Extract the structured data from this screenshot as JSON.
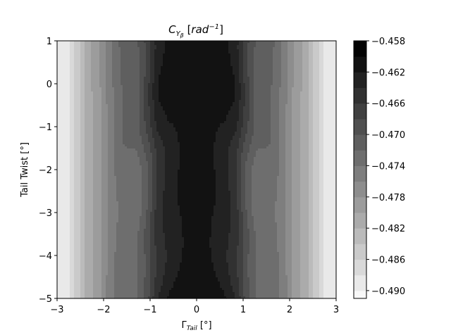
{
  "chart_data": {
    "type": "heatmap",
    "subtype": "filled-contour",
    "title": {
      "main": "C",
      "sub_main": "Y",
      "sub_sub": "β",
      "bracket_open": "[",
      "unit": "rad",
      "sup": "−1",
      "bracket_close": "]"
    },
    "xlabel": {
      "main": "Γ",
      "sub": "Tail",
      "unit": "[°]"
    },
    "ylabel": "Tail Twist [°]",
    "xlim": [
      -3,
      3
    ],
    "ylim": [
      -5,
      1
    ],
    "x_ticks": [
      -3,
      -2,
      -1,
      0,
      1,
      2,
      3
    ],
    "x_tick_labels": [
      "−3",
      "−2",
      "−1",
      "0",
      "1",
      "2",
      "3"
    ],
    "y_ticks": [
      1,
      0,
      -1,
      -2,
      -3,
      -4,
      -5
    ],
    "y_tick_labels": [
      "1",
      "0",
      "−1",
      "−2",
      "−3",
      "−4",
      "−5"
    ],
    "grid": false,
    "colormap": "gray_r",
    "colorbar": {
      "position": "right",
      "min": -0.491,
      "max": -0.458,
      "levels": [
        -0.491,
        -0.49,
        -0.488,
        -0.486,
        -0.484,
        -0.482,
        -0.48,
        -0.478,
        -0.476,
        -0.474,
        -0.472,
        -0.47,
        -0.468,
        -0.466,
        -0.464,
        -0.462,
        -0.46,
        -0.458
      ],
      "ticks": [
        -0.458,
        -0.462,
        -0.466,
        -0.47,
        -0.474,
        -0.478,
        -0.482,
        -0.486,
        -0.49
      ],
      "tick_labels": [
        "−0.458",
        "−0.462",
        "−0.466",
        "−0.470",
        "−0.474",
        "−0.478",
        "−0.482",
        "−0.486",
        "−0.490"
      ]
    },
    "profile_x": [
      -2.85,
      -2.7,
      -2.55,
      -2.35,
      -2.1,
      -1.85,
      -1.6,
      -1.3,
      -1.05,
      -0.85,
      -0.6,
      -0.3,
      0,
      0.3,
      0.6,
      0.85,
      1.05,
      1.3,
      1.6,
      1.85,
      2.1,
      2.35,
      2.55,
      2.7,
      2.85
    ],
    "profile_values": [
      -0.4895,
      -0.4875,
      -0.4845,
      -0.481,
      -0.4785,
      -0.4745,
      -0.4715,
      -0.4705,
      -0.4665,
      -0.4625,
      -0.461,
      -0.4608,
      -0.4605,
      -0.4608,
      -0.461,
      -0.4625,
      -0.4665,
      -0.4705,
      -0.4715,
      -0.4745,
      -0.4785,
      -0.481,
      -0.4845,
      -0.4875,
      -0.4895
    ],
    "twist_offsets": [
      {
        "y": 1,
        "offset": 0
      },
      {
        "y": 0,
        "offset": 0
      },
      {
        "y": -1,
        "offset": -0.0015
      },
      {
        "y": -2,
        "offset": -0.003
      },
      {
        "y": -3,
        "offset": -0.0035
      },
      {
        "y": -4,
        "offset": -0.003
      },
      {
        "y": -5,
        "offset": -0.0012
      }
    ]
  }
}
